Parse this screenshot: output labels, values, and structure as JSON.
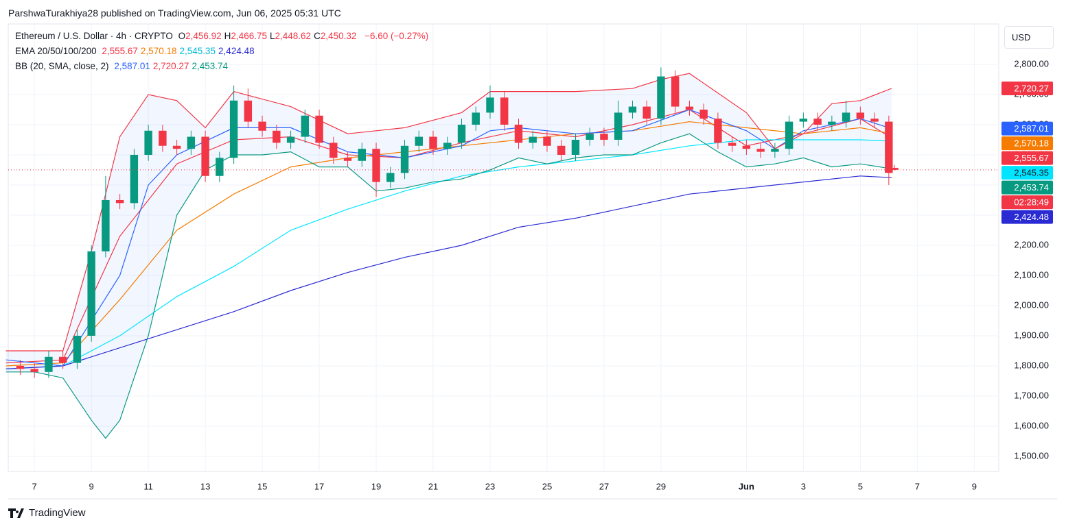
{
  "attribution": "ParshwaTurakhiya28 published on TradingView.com, Jun 06, 2025 05:31 UTC",
  "header": {
    "symbol": "Ethereum / U.S. Dollar · 4h · CRYPTO",
    "ohlc": [
      {
        "key": "O",
        "value": "2,456.92"
      },
      {
        "key": "H",
        "value": "2,466.75"
      },
      {
        "key": "L",
        "value": "2,448.62"
      },
      {
        "key": "C",
        "value": "2,450.32"
      }
    ],
    "change": "−6.60 (−0.27%)",
    "ema_label": "EMA 20/50/100/200",
    "bb_label": "BB (20, SMA, close, 2)"
  },
  "currency": "USD",
  "brand": "TradingView",
  "chart_data": {
    "type": "candlestick",
    "up_color": "#089981",
    "down_color": "#f23645",
    "x": [
      6.5,
      7,
      7.5,
      8,
      8.5,
      9,
      9.5,
      10,
      10.5,
      11,
      11.5,
      12,
      12.5,
      13,
      13.5,
      14,
      14.5,
      15,
      15.5,
      16,
      16.5,
      17,
      17.5,
      18,
      18.5,
      19,
      19.5,
      20,
      20.5,
      21,
      21.5,
      22,
      22.5,
      23,
      23.5,
      24,
      24.5,
      25,
      25.5,
      26,
      26.5,
      27,
      27.5,
      28,
      28.5,
      29,
      29.5,
      30,
      30.5,
      31,
      31.5,
      32,
      32.5,
      33,
      33.5,
      34,
      34.5,
      35,
      35.5,
      36,
      36.5,
      37,
      37.2
    ],
    "open": [
      1800,
      1790,
      1780,
      1830,
      1810,
      1900,
      2180,
      2350,
      2340,
      2500,
      2580,
      2530,
      2520,
      2560,
      2430,
      2490,
      2680,
      2610,
      2580,
      2540,
      2560,
      2630,
      2540,
      2490,
      2480,
      2520,
      2410,
      2440,
      2530,
      2560,
      2520,
      2540,
      2600,
      2640,
      2690,
      2600,
      2540,
      2560,
      2530,
      2500,
      2550,
      2570,
      2550,
      2640,
      2660,
      2620,
      2760,
      2660,
      2650,
      2620,
      2540,
      2530,
      2520,
      2510,
      2520,
      2610,
      2620,
      2600,
      2610,
      2640,
      2620,
      2610,
      2456.92
    ],
    "high": [
      1820,
      1810,
      1850,
      1850,
      1920,
      2200,
      2430,
      2370,
      2520,
      2600,
      2600,
      2550,
      2580,
      2580,
      2510,
      2730,
      2720,
      2630,
      2600,
      2580,
      2650,
      2650,
      2560,
      2510,
      2540,
      2540,
      2460,
      2550,
      2580,
      2580,
      2560,
      2620,
      2660,
      2730,
      2710,
      2620,
      2580,
      2580,
      2550,
      2570,
      2590,
      2590,
      2680,
      2680,
      2680,
      2790,
      2780,
      2680,
      2670,
      2640,
      2560,
      2550,
      2540,
      2540,
      2630,
      2640,
      2640,
      2630,
      2680,
      2660,
      2640,
      2630,
      2466.75
    ],
    "low": [
      1770,
      1760,
      1760,
      1790,
      1790,
      1880,
      2160,
      2320,
      2320,
      2480,
      2510,
      2500,
      2500,
      2410,
      2410,
      2470,
      2590,
      2560,
      2520,
      2520,
      2540,
      2520,
      2470,
      2460,
      2460,
      2360,
      2390,
      2420,
      2510,
      2500,
      2500,
      2520,
      2580,
      2620,
      2580,
      2520,
      2520,
      2510,
      2480,
      2480,
      2530,
      2530,
      2530,
      2620,
      2600,
      2600,
      2640,
      2630,
      2600,
      2520,
      2510,
      2500,
      2490,
      2490,
      2500,
      2590,
      2580,
      2580,
      2590,
      2600,
      2590,
      2400,
      2448.62
    ],
    "close": [
      1790,
      1780,
      1830,
      1810,
      1900,
      2180,
      2350,
      2340,
      2500,
      2580,
      2530,
      2520,
      2560,
      2430,
      2490,
      2680,
      2610,
      2580,
      2540,
      2560,
      2630,
      2540,
      2490,
      2480,
      2520,
      2410,
      2440,
      2530,
      2560,
      2520,
      2540,
      2600,
      2640,
      2690,
      2600,
      2540,
      2560,
      2530,
      2500,
      2550,
      2570,
      2550,
      2640,
      2660,
      2620,
      2760,
      2660,
      2650,
      2620,
      2540,
      2530,
      2520,
      2510,
      2520,
      2610,
      2620,
      2600,
      2610,
      2640,
      2620,
      2610,
      2440,
      2450.32
    ],
    "series": [
      {
        "color": "#f23645",
        "last_label": "2,555.67",
        "x": [
          6,
          8,
          10,
          12,
          14,
          16,
          18,
          20,
          22,
          24,
          26,
          28,
          30,
          32,
          34,
          36,
          37.1
        ],
        "values": [
          1810,
          1820,
          2230,
          2470,
          2550,
          2560,
          2500,
          2490,
          2540,
          2580,
          2560,
          2600,
          2650,
          2530,
          2570,
          2620,
          2555.67
        ]
      },
      {
        "color": "#f57c00",
        "last_label": "2,570.18",
        "x": [
          6,
          8,
          10,
          12,
          14,
          16,
          18,
          20,
          22,
          24,
          26,
          28,
          30,
          32,
          34,
          36,
          37.1
        ],
        "values": [
          1800,
          1810,
          2020,
          2250,
          2370,
          2460,
          2490,
          2510,
          2530,
          2550,
          2570,
          2580,
          2610,
          2590,
          2570,
          2590,
          2570.18
        ]
      },
      {
        "color": "#00e5ff",
        "last_label": "2,545.35",
        "x": [
          6,
          8,
          10,
          12,
          14,
          16,
          18,
          20,
          22,
          24,
          26,
          28,
          30,
          32,
          34,
          36,
          37.1
        ],
        "values": [
          1790,
          1800,
          1900,
          2030,
          2130,
          2250,
          2320,
          2380,
          2430,
          2460,
          2480,
          2500,
          2530,
          2550,
          2550,
          2550,
          2545.35
        ]
      },
      {
        "color": "#2b2bd4",
        "last_label": "2,424.48",
        "x": [
          6,
          8,
          10,
          12,
          14,
          16,
          18,
          20,
          22,
          24,
          26,
          28,
          30,
          32,
          34,
          36,
          37.1
        ],
        "values": [
          1790,
          1800,
          1860,
          1920,
          1980,
          2050,
          2110,
          2160,
          2200,
          2260,
          2290,
          2330,
          2370,
          2390,
          2410,
          2430,
          2424.48
        ]
      },
      {
        "color": "#2962ff",
        "last_label": "2,587.01",
        "x": [
          6,
          8,
          10,
          11,
          12,
          14,
          16,
          18,
          20,
          22,
          23,
          24,
          26,
          28,
          30,
          32,
          33,
          34,
          36,
          37.1
        ],
        "values": [
          1820,
          1800,
          2100,
          2400,
          2500,
          2590,
          2590,
          2510,
          2490,
          2530,
          2580,
          2590,
          2570,
          2580,
          2650,
          2580,
          2520,
          2580,
          2620,
          2587.01
        ]
      },
      {
        "color": "#f23645",
        "last_label": "2,720.27",
        "x": [
          6,
          8,
          9,
          10,
          11,
          12,
          13,
          14,
          16,
          18,
          20,
          22,
          23,
          24,
          26,
          28,
          29,
          30,
          32,
          33,
          34,
          35,
          36,
          37.1
        ],
        "values": [
          1850,
          1850,
          2180,
          2560,
          2700,
          2680,
          2590,
          2710,
          2660,
          2570,
          2590,
          2640,
          2710,
          2710,
          2710,
          2720,
          2750,
          2770,
          2640,
          2520,
          2570,
          2670,
          2680,
          2720.27
        ]
      },
      {
        "color": "#089981",
        "last_label": "2,453.74",
        "x": [
          6,
          7,
          8,
          9,
          9.5,
          10,
          11,
          12,
          13,
          14,
          15,
          16,
          17,
          18,
          19,
          20,
          21,
          22,
          23,
          24,
          25,
          26,
          27,
          28,
          29,
          30,
          31,
          32,
          33,
          34,
          35,
          36,
          37.1
        ],
        "values": [
          1780,
          1780,
          1760,
          1620,
          1560,
          1620,
          1900,
          2300,
          2450,
          2500,
          2500,
          2510,
          2460,
          2460,
          2380,
          2390,
          2410,
          2420,
          2450,
          2490,
          2470,
          2490,
          2500,
          2500,
          2540,
          2570,
          2510,
          2460,
          2470,
          2490,
          2460,
          2470,
          2453.74
        ]
      }
    ],
    "countdown": "02:28:49",
    "xlim": [
      6.08,
      40.86
    ],
    "ylim": [
      1450,
      2934
    ],
    "xticks": [
      7,
      9,
      11,
      13,
      15,
      17,
      19,
      21,
      23,
      25,
      27,
      29,
      {
        "value": 32,
        "label": "Jun"
      },
      {
        "value": 34,
        "label": "3"
      },
      {
        "value": 36,
        "label": "5"
      },
      {
        "value": 38,
        "label": "7"
      },
      {
        "value": 40,
        "label": "9"
      }
    ],
    "yticks": [
      {
        "value": 1500,
        "label": "1,500.00"
      },
      {
        "value": 1600,
        "label": "1,600.00"
      },
      {
        "value": 1700,
        "label": "1,700.00"
      },
      {
        "value": 1800,
        "label": "1,800.00"
      },
      {
        "value": 1900,
        "label": "1,900.00"
      },
      {
        "value": 2000,
        "label": "2,000.00"
      },
      {
        "value": 2100,
        "label": "2,100.00"
      },
      {
        "value": 2200,
        "label": "2,200.00"
      },
      {
        "value": 2300,
        "label": "2,300.00"
      },
      {
        "value": 2400,
        "label": "2,400.00"
      },
      {
        "value": 2500,
        "label": "2,500.00"
      },
      {
        "value": 2600,
        "label": "2,600.00"
      },
      {
        "value": 2700,
        "label": "2,700.00"
      },
      {
        "value": 2800,
        "label": "2,800.00"
      }
    ],
    "grid": true
  }
}
